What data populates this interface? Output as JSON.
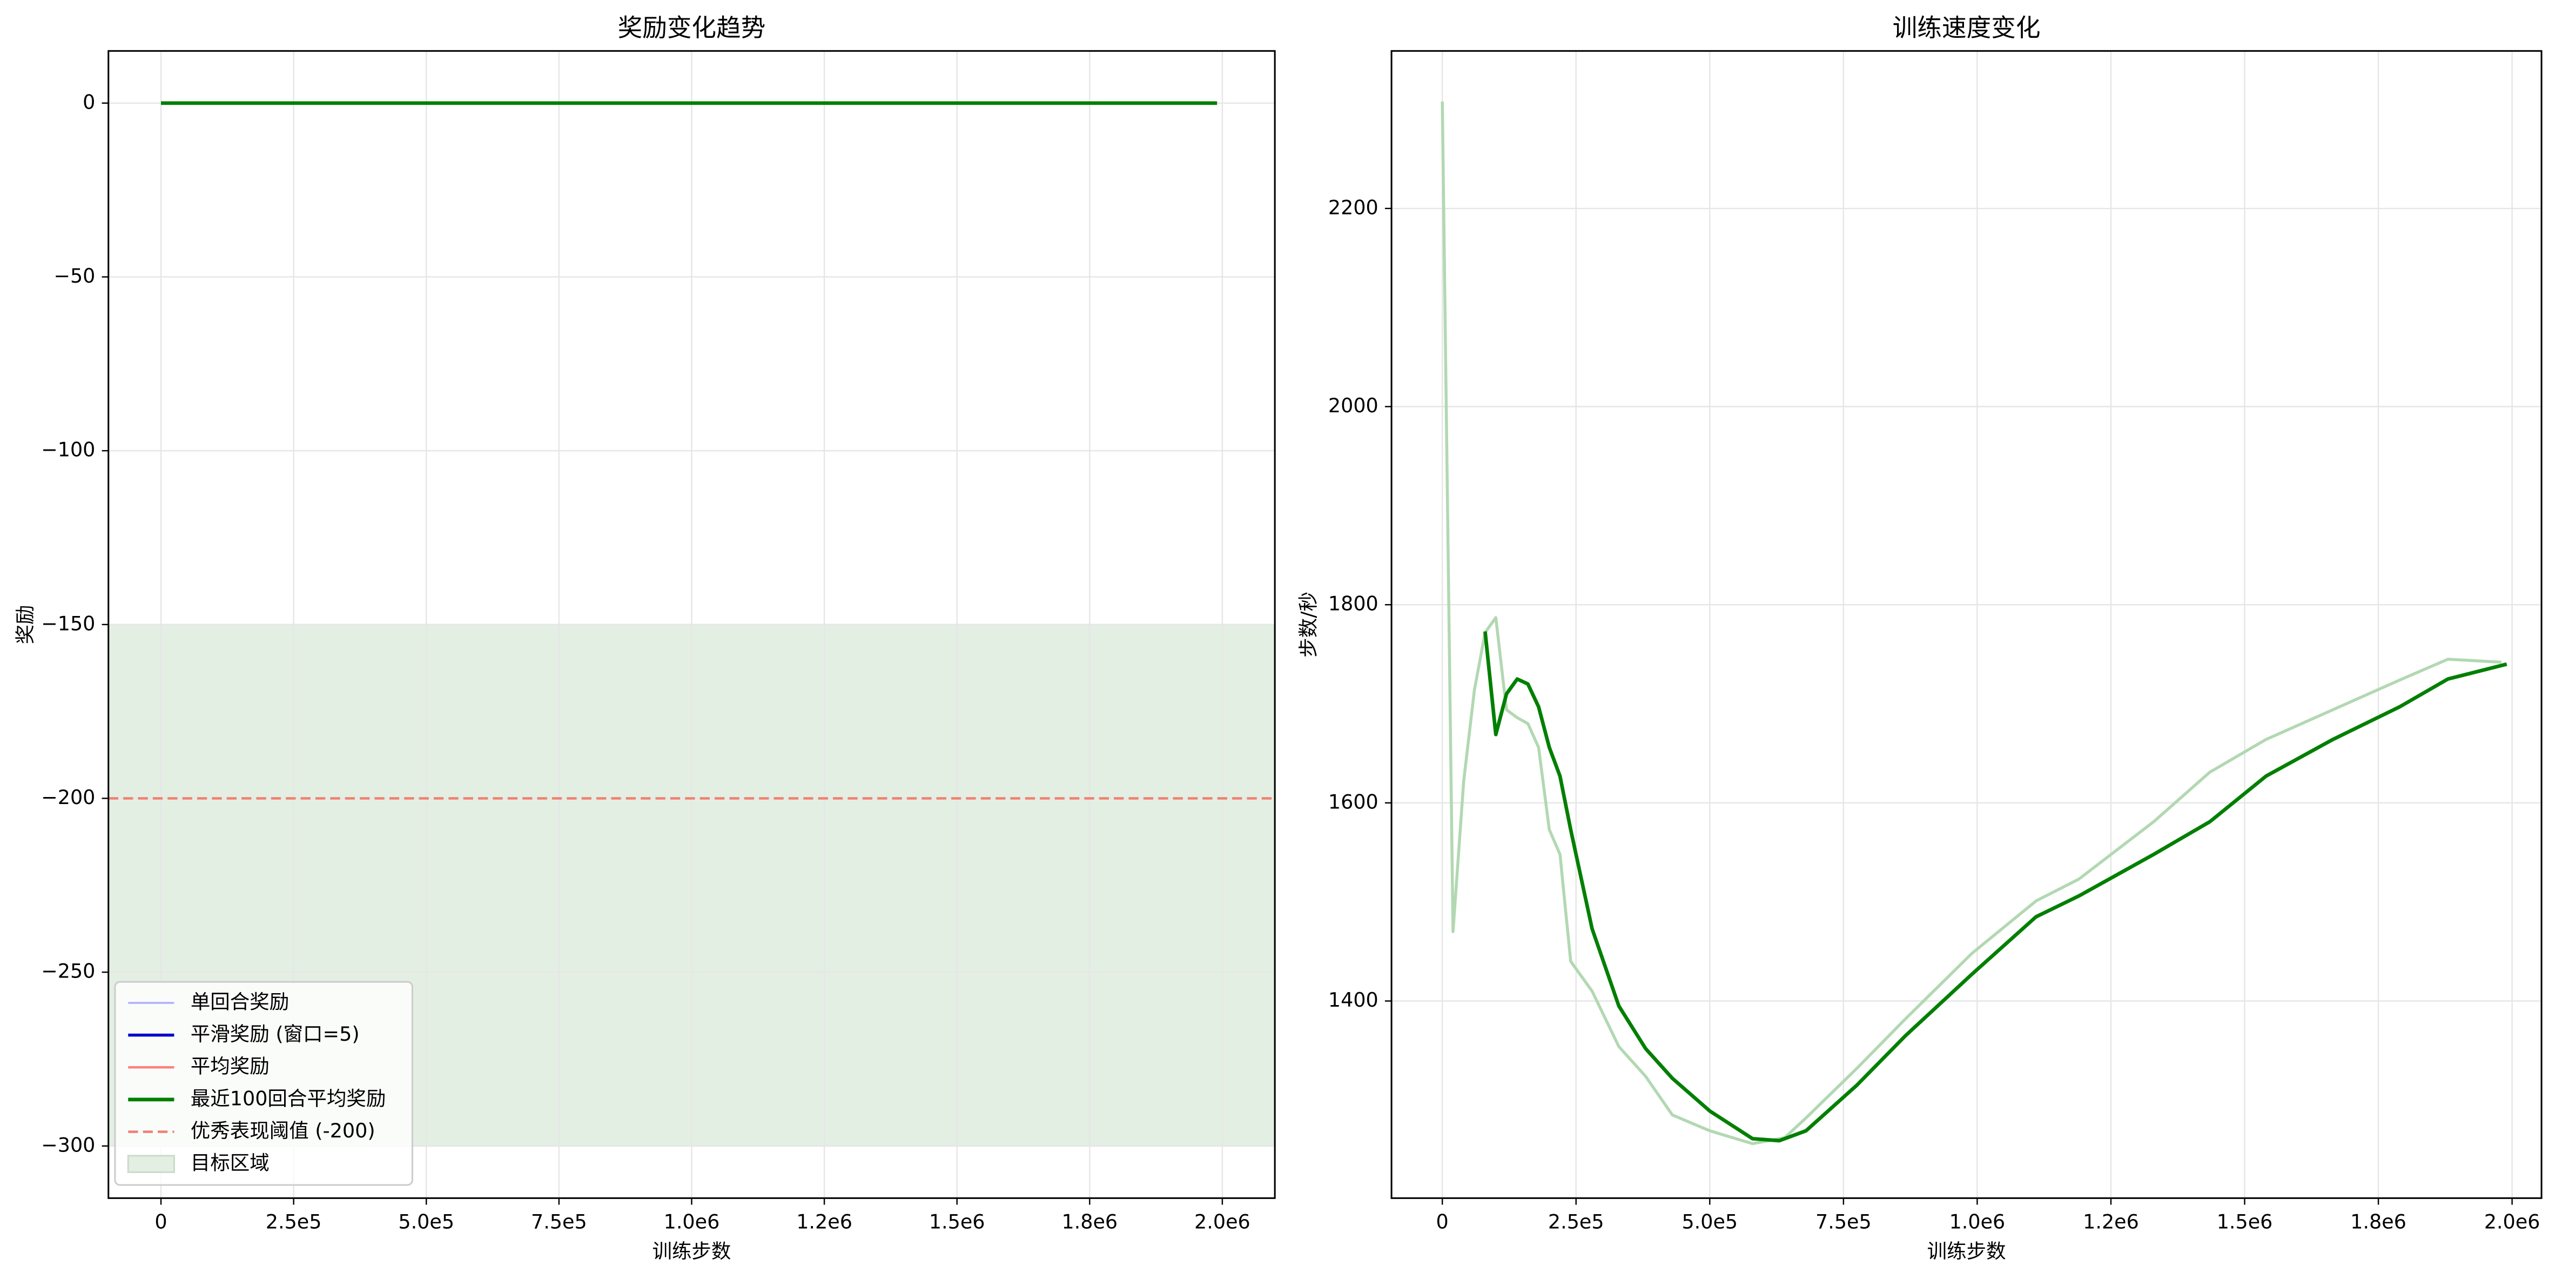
{
  "chart_data": [
    {
      "type": "line",
      "title": "奖励变化趋势",
      "xlabel": "训练步数",
      "ylabel": "奖励",
      "xlim": [
        -99000,
        2099000
      ],
      "xticks": [
        0,
        {
          "value": 250000,
          "label": "2.5e5"
        },
        {
          "value": 500000,
          "label": "5.0e5"
        },
        {
          "value": 750000,
          "label": "7.5e5"
        },
        {
          "value": 1000000,
          "label": "1.0e6"
        },
        {
          "value": 1250000,
          "label": "1.2e6"
        },
        {
          "value": 1500000,
          "label": "1.5e6"
        },
        {
          "value": 1750000,
          "label": "1.8e6"
        },
        {
          "value": 2000000,
          "label": "2.0e6"
        }
      ],
      "ylim": [
        -315,
        15
      ],
      "yticks": [
        0,
        {
          "value": -50,
          "label": "−50"
        },
        {
          "value": -100,
          "label": "−100"
        },
        {
          "value": -150,
          "label": "−150"
        },
        {
          "value": -200,
          "label": "−200"
        },
        {
          "value": -250,
          "label": "−250"
        },
        {
          "value": -300,
          "label": "−300"
        }
      ],
      "grid": true,
      "legend": "lower left",
      "x": [
        0,
        500000,
        1000000,
        1500000,
        1990000
      ],
      "series": [
        {
          "name": "单回合奖励",
          "color": "#b3b3ff",
          "linewidth": 1.2,
          "values": [
            0,
            0,
            0,
            0,
            0
          ]
        },
        {
          "name": "平滑奖励 (窗口=5)",
          "color": "#0000cc",
          "linewidth": 1.8,
          "values": [
            0,
            0,
            0,
            0,
            0
          ]
        },
        {
          "name": "平均奖励",
          "color": "#ff8080",
          "linewidth": 1.5,
          "values": [
            0,
            0,
            0,
            0,
            0
          ]
        },
        {
          "name": "最近100回合平均奖励",
          "color": "#007f00",
          "linewidth": 2.2,
          "values": [
            0,
            0,
            0,
            0,
            0
          ]
        }
      ],
      "hlines": [
        {
          "name": "优秀表现阈值 (-200)",
          "value": -200,
          "color": "#f08070"
        }
      ],
      "spans": [
        {
          "name": "目标区域",
          "range": [
            -300,
            -150
          ],
          "color": "#e3efe3"
        }
      ]
    },
    {
      "type": "line",
      "title": "训练速度变化",
      "xlabel": "训练步数",
      "ylabel": "步数/秒",
      "xlim": [
        -95000,
        2055000
      ],
      "xticks": [
        0,
        {
          "value": 250000,
          "label": "2.5e5"
        },
        {
          "value": 500000,
          "label": "5.0e5"
        },
        {
          "value": 750000,
          "label": "7.5e5"
        },
        {
          "value": 1000000,
          "label": "1.0e6"
        },
        {
          "value": 1250000,
          "label": "1.2e6"
        },
        {
          "value": 1500000,
          "label": "1.5e6"
        },
        {
          "value": 1750000,
          "label": "1.8e6"
        },
        {
          "value": 2000000,
          "label": "2.0e6"
        }
      ],
      "ylim": [
        1201,
        2359
      ],
      "yticks": [
        1400,
        1600,
        1800,
        2000,
        2200
      ],
      "grid": true,
      "series": [
        {
          "color": "#b2d8b2",
          "linewidth": 1.8,
          "x": [
            0,
            20000,
            40000,
            60000,
            80000,
            100000,
            120000,
            140000,
            160000,
            180000,
            200000,
            220000,
            240000,
            280000,
            330000,
            380000,
            430000,
            500000,
            580000,
            640000,
            680000,
            775000,
            866000,
            990000,
            1110000,
            1190000,
            1330000,
            1435000,
            1540000,
            1665000,
            1790000,
            1880000,
            1980000
          ],
          "values": [
            2308,
            1470,
            1622,
            1714,
            1772,
            1787,
            1694,
            1686,
            1680,
            1656,
            1573,
            1548,
            1440,
            1410,
            1354,
            1324,
            1285,
            1269,
            1256,
            1262,
            1282,
            1332,
            1382,
            1448,
            1501,
            1523,
            1581,
            1631,
            1664,
            1694,
            1724,
            1745,
            1742
          ]
        },
        {
          "color": "#007f00",
          "linewidth": 2.2,
          "x": [
            80000,
            100000,
            120000,
            140000,
            160000,
            180000,
            200000,
            220000,
            240000,
            280000,
            330000,
            380000,
            430000,
            500000,
            580000,
            630000,
            680000,
            775000,
            866000,
            990000,
            1110000,
            1190000,
            1330000,
            1435000,
            1540000,
            1665000,
            1790000,
            1880000,
            1990000
          ],
          "values": [
            1773,
            1669,
            1710,
            1725,
            1720,
            1697,
            1656,
            1627,
            1573,
            1473,
            1395,
            1352,
            1322,
            1289,
            1261,
            1259,
            1269,
            1315,
            1365,
            1427,
            1485,
            1506,
            1548,
            1581,
            1627,
            1664,
            1697,
            1725,
            1740
          ]
        }
      ]
    }
  ]
}
